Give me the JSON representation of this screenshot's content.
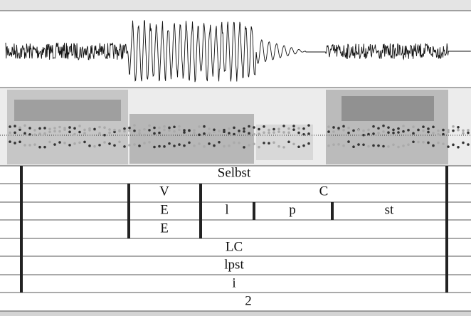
{
  "tiers": [
    {
      "labels": [
        "Selbst"
      ]
    },
    {
      "labels": [
        "V",
        "C"
      ]
    },
    {
      "labels": [
        "E",
        "l",
        "p",
        "st"
      ]
    },
    {
      "labels": [
        "E"
      ]
    },
    {
      "labels": [
        "LC"
      ]
    },
    {
      "labels": [
        "lpst"
      ]
    },
    {
      "labels": [
        "i"
      ]
    },
    {
      "labels": [
        "2"
      ]
    }
  ]
}
